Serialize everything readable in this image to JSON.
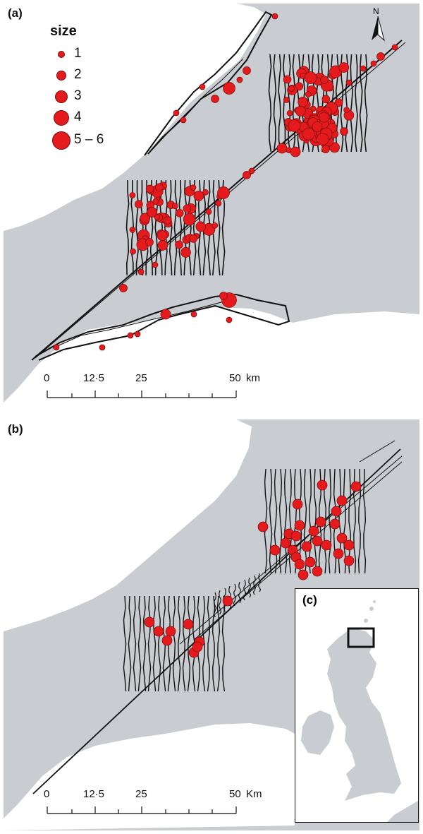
{
  "panel_a": {
    "label": "(a)",
    "legend": {
      "title": "size",
      "items": [
        {
          "label": "1"
        },
        {
          "label": "2"
        },
        {
          "label": "3"
        },
        {
          "label": "4"
        },
        {
          "label": "5 – 6"
        }
      ]
    },
    "north_label": "N",
    "scale": {
      "ticks": [
        "0",
        "12·5",
        "25",
        "50"
      ],
      "unit": "km"
    }
  },
  "panel_b": {
    "label": "(b)",
    "scale": {
      "ticks": [
        "0",
        "12·5",
        "25",
        "50"
      ],
      "unit": "Km"
    },
    "inset_label": "(c)"
  },
  "colors": {
    "sea": "#c9cdd1",
    "land": "#ffffff",
    "sighting": "#e41a1c",
    "track": "#111111"
  },
  "icons": [
    "north-arrow-icon",
    "sighting-marker-icon"
  ]
}
